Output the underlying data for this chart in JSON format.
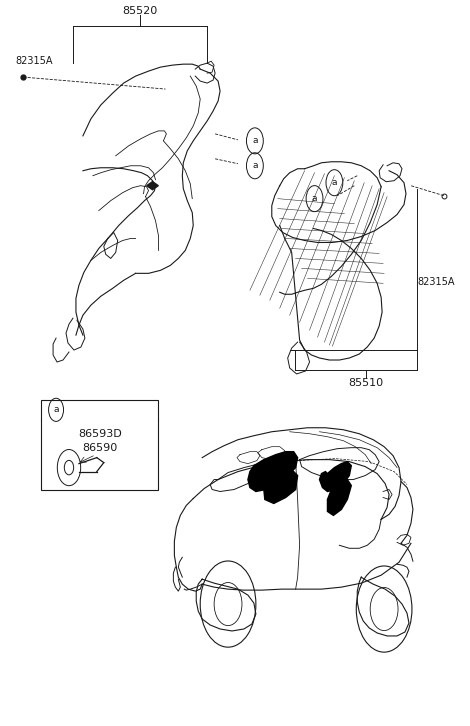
{
  "bg_color": "#ffffff",
  "line_color": "#1a1a1a",
  "label_85520": "85520",
  "label_82315A_left": "82315A",
  "label_82315A_right": "82315A",
  "label_85510": "85510",
  "label_86593D": "86593D",
  "label_86590": "86590",
  "label_a": "a",
  "fig_width": 4.7,
  "fig_height": 7.26,
  "dpi": 100
}
